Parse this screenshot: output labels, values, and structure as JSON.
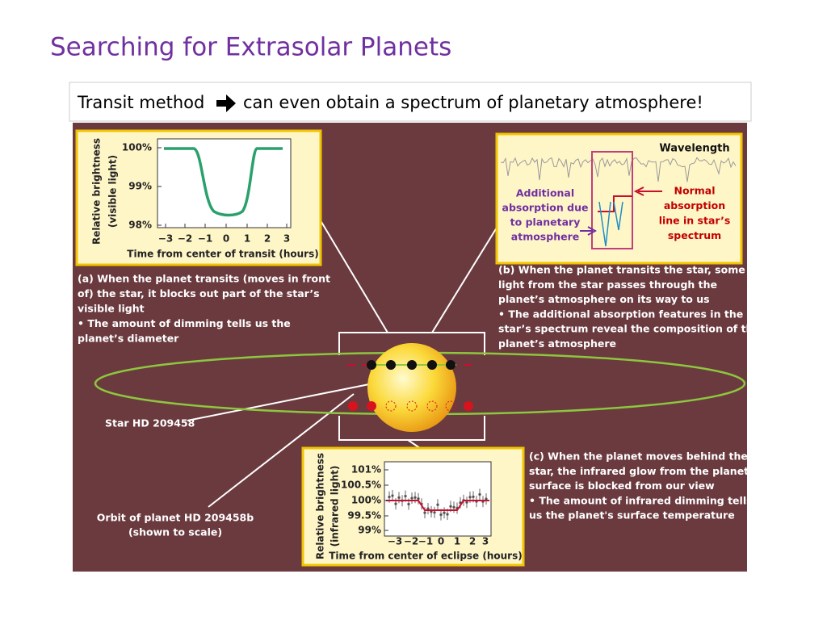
{
  "title": "Searching for Extrasolar Planets",
  "subtitle": {
    "before": "Transit method",
    "after": "can even obtain a spectrum of planetary atmosphere!"
  },
  "figure": {
    "panel_a": {
      "y_label": [
        "Relative brightness",
        "(visible light)"
      ],
      "y_ticks": [
        "100%",
        "99%",
        "98%"
      ],
      "x_ticks": [
        "−3",
        "−2",
        "−1",
        "0",
        "1",
        "2",
        "3"
      ],
      "x_label": "Time from center of transit (hours)",
      "caption": [
        "(a) When the planet transits (moves in front",
        "of) the star, it blocks out part of the star’s",
        "visible light",
        "• The amount of dimming tells us the",
        "planet’s  diameter"
      ]
    },
    "panel_b": {
      "wavelength": "Wavelength",
      "left_note": [
        "Additional",
        "absorption due",
        "to planetary",
        "atmosphere"
      ],
      "right_note": [
        "Normal",
        "absorption",
        "line in star’s",
        "spectrum"
      ],
      "caption": [
        "(b) When the planet transits the star, some",
        "light from the star passes through the",
        "planet’s atmosphere on its way to us",
        "• The additional absorption features in the",
        "star’s spectrum reveal the composition of the",
        "planet’s atmosphere"
      ]
    },
    "panel_c": {
      "y_label": [
        "Relative brightness",
        "(infrared light)"
      ],
      "y_ticks": [
        "101%",
        "100.5%",
        "100%",
        "99.5%",
        "99%"
      ],
      "x_ticks": [
        "−3",
        "−2",
        "−1",
        "0",
        "1",
        "2",
        "3"
      ],
      "x_label": "Time from center of eclipse (hours)",
      "caption": [
        "(c) When the planet moves behind the",
        "star, the infrared glow from the planet's",
        "surface is blocked from our view",
        "• The amount of infrared dimming tells",
        "us the planet's surface temperature"
      ]
    },
    "star_label": "Star HD 209458",
    "orbit_label": [
      "Orbit of planet HD 209458b",
      "(shown to scale)"
    ]
  }
}
